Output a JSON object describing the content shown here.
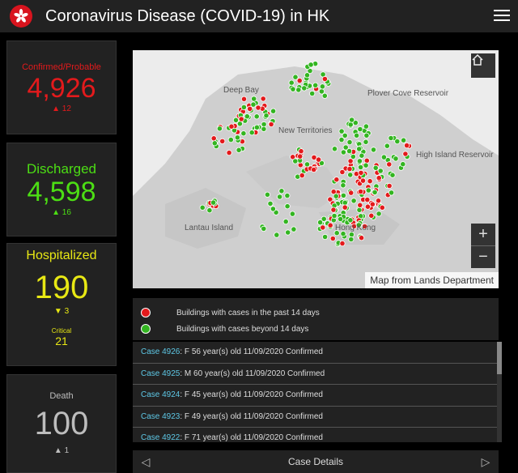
{
  "header": {
    "title": "Coronavirus Disease (COVID-19) in HK"
  },
  "stats": {
    "confirmed": {
      "label": "Confirmed/Probable",
      "value": "4,926",
      "delta": "12"
    },
    "discharged": {
      "label": "Discharged",
      "value": "4,598",
      "delta": "16"
    },
    "hospitalized": {
      "label": "Hospitalized",
      "value": "190",
      "delta": "3",
      "critical_label": "Critical",
      "critical_value": "21"
    },
    "death": {
      "label": "Death",
      "value": "100",
      "delta": "1"
    }
  },
  "map": {
    "labels": [
      "Deep Bay",
      "Plover Cove Reservoir",
      "New Territories",
      "High Island Reservoir",
      "Lantau Island",
      "Hong Kong"
    ],
    "attribution": "Map from Lands Department"
  },
  "legend": {
    "recent": {
      "label": "Buildings with cases in the past 14 days",
      "color": "#e31a1c"
    },
    "older": {
      "label": "Buildings with cases beyond 14 days",
      "color": "#33b521"
    }
  },
  "cases": [
    {
      "id": "Case 4926",
      "text": ": F  56 year(s) old  11/09/2020 Confirmed"
    },
    {
      "id": "Case 4925",
      "text": ": M  60 year(s) old  11/09/2020 Confirmed"
    },
    {
      "id": "Case 4924",
      "text": ": F  45 year(s) old  11/09/2020 Confirmed"
    },
    {
      "id": "Case 4923",
      "text": ": F  49 year(s) old  11/09/2020 Confirmed"
    },
    {
      "id": "Case 4922",
      "text": ": F  71 year(s) old  11/09/2020 Confirmed"
    }
  ],
  "footer": {
    "label": "Case Details"
  }
}
